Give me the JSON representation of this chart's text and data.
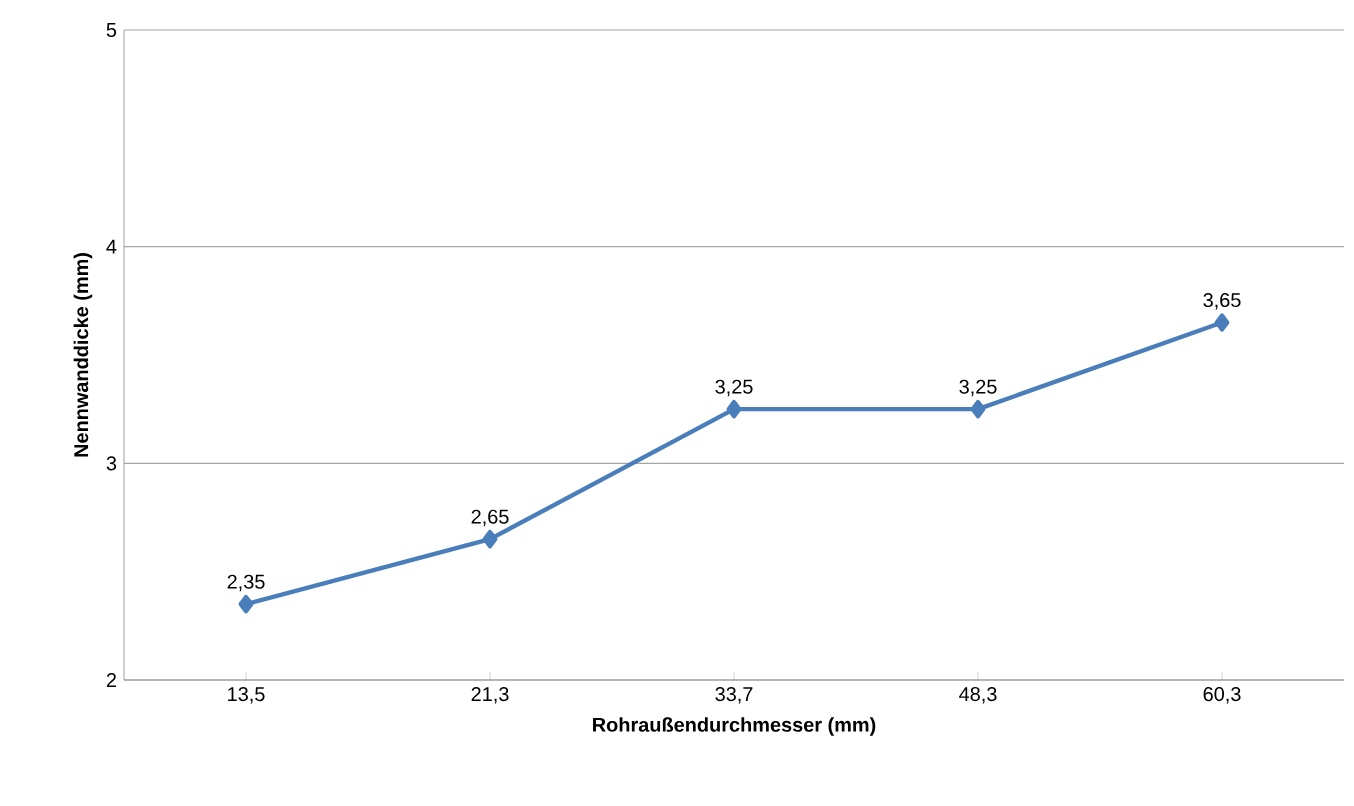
{
  "chart_data": {
    "type": "line",
    "xlabel": "Rohraußendurchmesser (mm)",
    "ylabel": "Nennwanddicke (mm)",
    "categories": [
      "13,5",
      "21,3",
      "33,7",
      "48,3",
      "60,3"
    ],
    "series": [
      {
        "color": "#4a7ebb",
        "values": [
          2.35,
          2.65,
          3.25,
          3.25,
          3.65
        ],
        "value_labels": [
          "2,35",
          "2,65",
          "3,25",
          "3,25",
          "3,65"
        ]
      }
    ],
    "ylim": [
      2,
      5
    ],
    "yticks": [
      2,
      3,
      4,
      5
    ],
    "grid": "y",
    "marker": "diamond",
    "line_style": "solid"
  }
}
